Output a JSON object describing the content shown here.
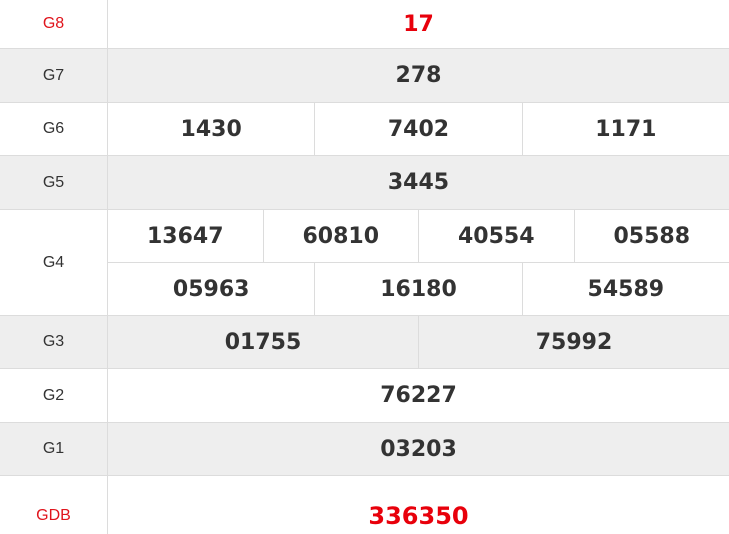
{
  "colors": {
    "special": "#e8000b",
    "label_special": "#e0141c",
    "text": "#333333",
    "alt_row": "#eeeeee"
  },
  "prizes": [
    {
      "label": "G8",
      "numbers": [
        "17"
      ]
    },
    {
      "label": "G7",
      "numbers": [
        "278"
      ]
    },
    {
      "label": "G6",
      "numbers": [
        "1430",
        "7402",
        "1171"
      ]
    },
    {
      "label": "G5",
      "numbers": [
        "3445"
      ]
    },
    {
      "label": "G4",
      "numbers": [
        "13647",
        "60810",
        "40554",
        "05588",
        "05963",
        "16180",
        "54589"
      ]
    },
    {
      "label": "G3",
      "numbers": [
        "01755",
        "75992"
      ]
    },
    {
      "label": "G2",
      "numbers": [
        "76227"
      ]
    },
    {
      "label": "G1",
      "numbers": [
        "03203"
      ]
    },
    {
      "label": "GDB",
      "numbers": [
        "336350"
      ]
    }
  ]
}
